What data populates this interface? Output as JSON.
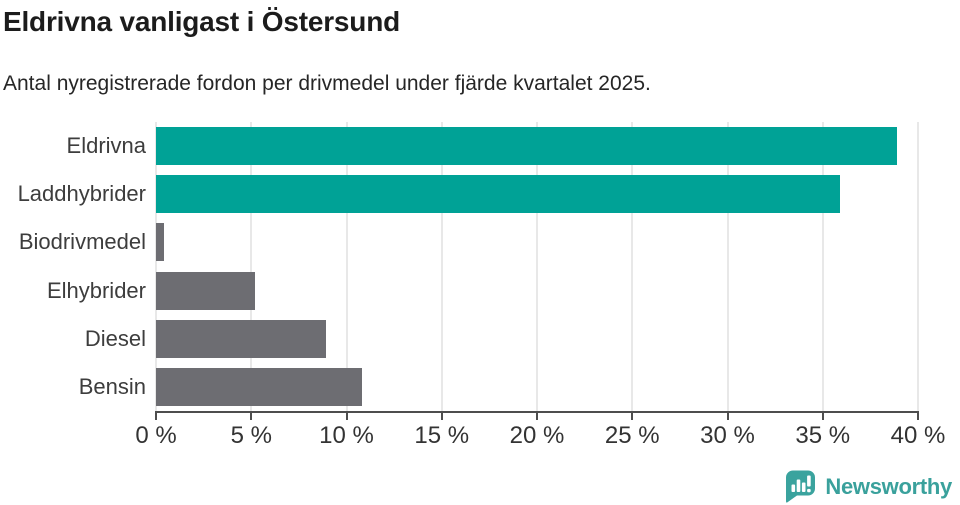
{
  "title": "Eldrivna vanligast i Östersund",
  "subtitle": "Antal nyregistrerade fordon per drivmedel under fjärde kvartalet 2025.",
  "chart_data": {
    "type": "bar",
    "orientation": "horizontal",
    "title": "Eldrivna vanligast i Östersund",
    "subtitle": "Antal nyregistrerade fordon per drivmedel under fjärde kvartalet 2025.",
    "categories": [
      "Eldrivna",
      "Laddhybrider",
      "Biodrivmedel",
      "Elhybrider",
      "Diesel",
      "Bensin"
    ],
    "values": [
      38.9,
      35.9,
      0.4,
      5.2,
      8.9,
      10.8
    ],
    "unit": "%",
    "bar_colors": [
      "#00a296",
      "#00a296",
      "#6d6d72",
      "#6d6d72",
      "#6d6d72",
      "#6d6d72"
    ],
    "x_ticks": [
      "0 %",
      "5 %",
      "10 %",
      "15 %",
      "20 %",
      "25 %",
      "30 %",
      "35 %",
      "40 %"
    ],
    "xlim": [
      0,
      40
    ],
    "grid": true,
    "legend": false,
    "accent_color": "#00a296",
    "neutral_color": "#6d6d72"
  },
  "footer": {
    "brand": "Newsworthy",
    "brand_color": "#3aa19c"
  }
}
